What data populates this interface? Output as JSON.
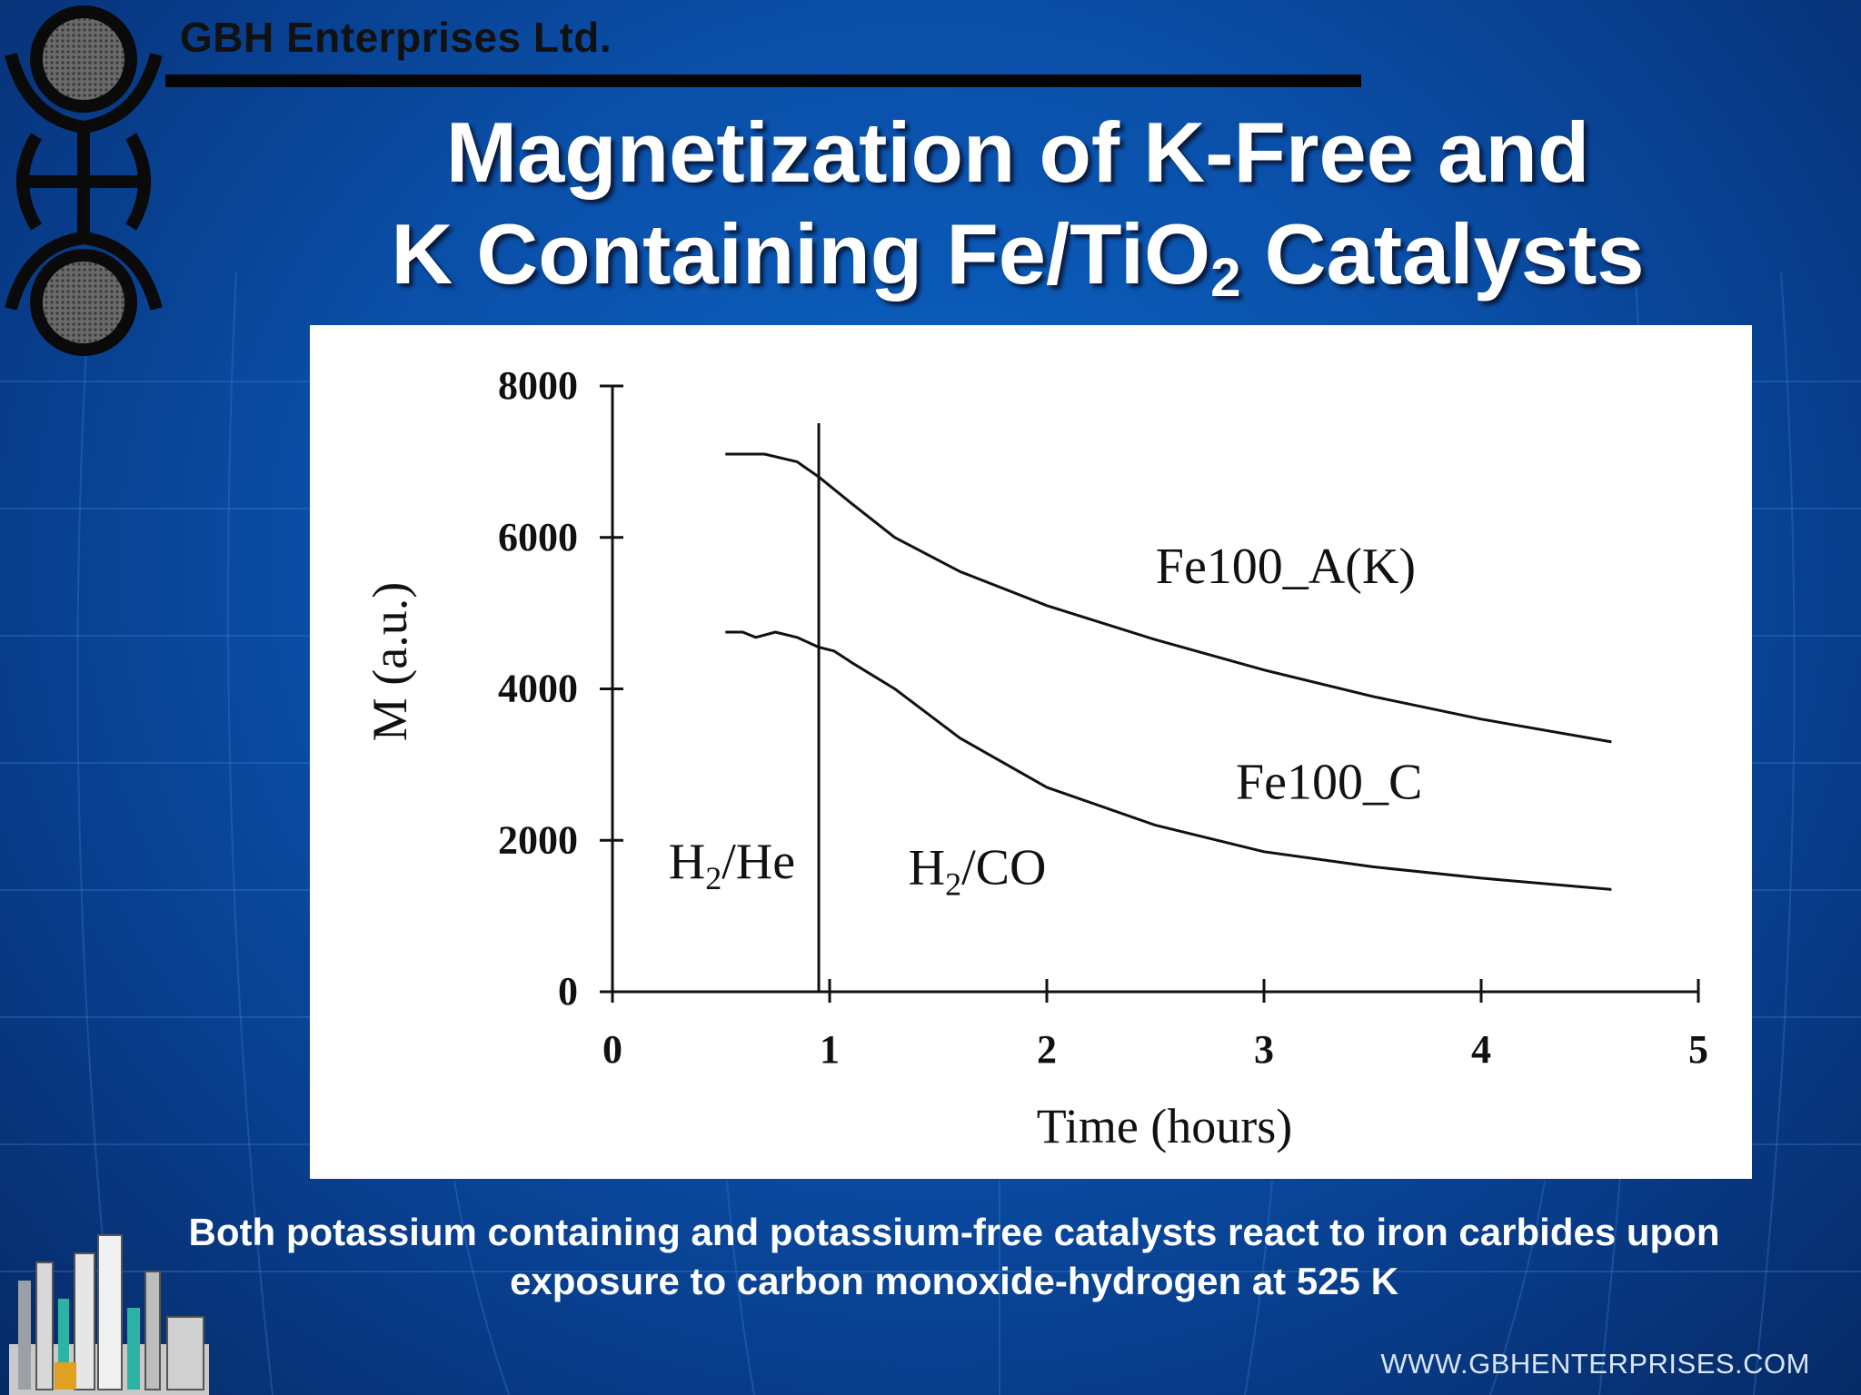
{
  "header": {
    "company": "GBH Enterprises Ltd.",
    "title_line1": "Magnetization of K-Free and",
    "title_line2_pre": "K Containing Fe/TiO",
    "title_line2_sub": "2",
    "title_line2_post": " Catalysts"
  },
  "caption": "Both potassium containing and potassium-free catalysts react to iron carbides upon exposure to carbon monoxide-hydrogen at 525 K",
  "footer": {
    "website": "WWW.GBHENTERPRISES.COM"
  },
  "colors": {
    "background": "#0a4fa8",
    "title_text": "#ffffff",
    "chart_ink": "#111111"
  },
  "chart_data": {
    "type": "line",
    "title": "",
    "xlabel": "Time (hours)",
    "ylabel": "M (a.u.)",
    "xlim": [
      0,
      5
    ],
    "ylim": [
      0,
      8000
    ],
    "x_ticks": [
      "0",
      "1",
      "2",
      "3",
      "4",
      "5"
    ],
    "y_ticks": [
      "0",
      "2000",
      "4000",
      "6000",
      "8000"
    ],
    "grid": false,
    "series": [
      {
        "name": "Fe100_A(K)",
        "x": [
          0.52,
          0.7,
          0.85,
          0.95,
          1.1,
          1.3,
          1.6,
          2.0,
          2.5,
          3.0,
          3.5,
          4.0,
          4.6
        ],
        "y": [
          7100,
          7100,
          7000,
          6800,
          6450,
          6000,
          5550,
          5100,
          4650,
          4250,
          3900,
          3600,
          3300
        ]
      },
      {
        "name": "Fe100_C",
        "x": [
          0.52,
          0.6,
          0.66,
          0.75,
          0.85,
          0.95,
          1.02,
          1.1,
          1.3,
          1.6,
          2.0,
          2.5,
          3.0,
          3.5,
          4.0,
          4.6
        ],
        "y": [
          4750,
          4750,
          4680,
          4750,
          4680,
          4550,
          4500,
          4350,
          4000,
          3350,
          2700,
          2200,
          1850,
          1650,
          1500,
          1350
        ]
      }
    ],
    "vertical_line_x": 0.95,
    "annotations": [
      {
        "sub": "2",
        "pre": "H",
        "post": "/He"
      },
      {
        "sub": "2",
        "pre": "H",
        "post": "/CO"
      }
    ]
  }
}
